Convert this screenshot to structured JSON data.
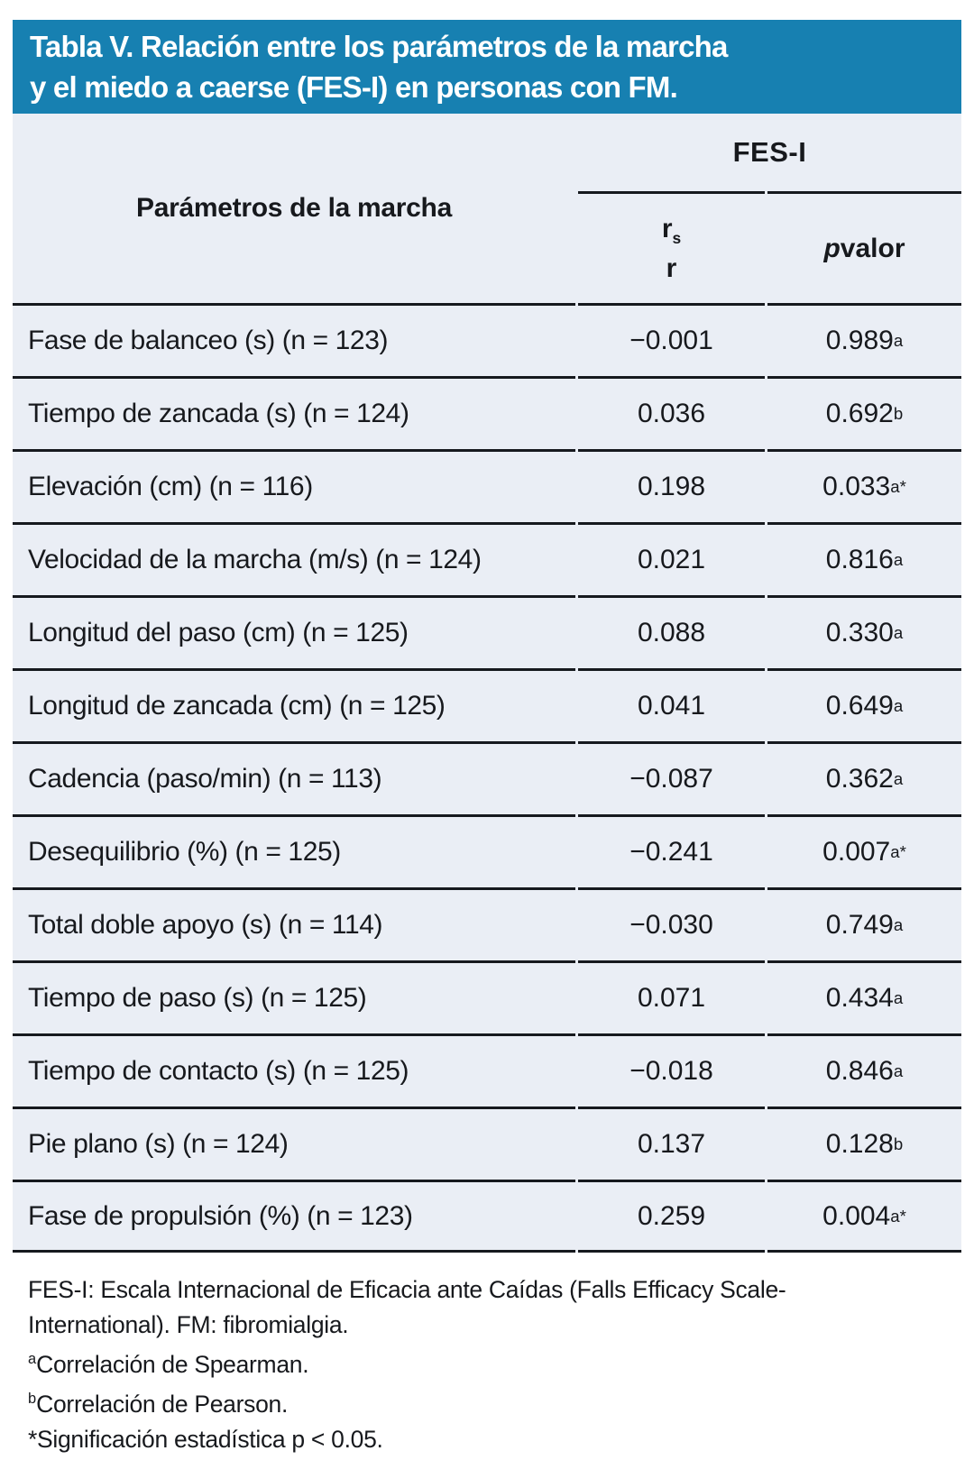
{
  "colors": {
    "title_bar_bg": "#1780B1",
    "table_bg": "#EAEEF5",
    "rule": "#16191E",
    "title_text": "#FFFFFF",
    "body_text": "#17191D"
  },
  "title": {
    "lines": [
      "Tabla V. Relación entre los parámetros de la marcha",
      "y el miedo a caerse (FES-I) en personas con FM."
    ]
  },
  "table": {
    "param_header": "Parámetros de la marcha",
    "group_header": "FES-I",
    "col_r": {
      "line1_base": "r",
      "line1_sub": "s",
      "line2": "r"
    },
    "col_p": {
      "italic": "p",
      "rest": " valor"
    },
    "rows": [
      {
        "label": "Fase de balanceo (s) (n = 123)",
        "rs": "−0.001",
        "p": "0.989",
        "p_sup": "a"
      },
      {
        "label": "Tiempo de zancada (s) (n = 124)",
        "rs": "0.036",
        "p": "0.692",
        "p_sup": "b"
      },
      {
        "label": "Elevación (cm) (n = 116)",
        "rs": "0.198",
        "p": "0.033",
        "p_sup": "a*"
      },
      {
        "label": "Velocidad de la marcha (m/s) (n = 124)",
        "rs": "0.021",
        "p": "0.816",
        "p_sup": "a"
      },
      {
        "label": "Longitud del paso (cm) (n = 125)",
        "rs": "0.088",
        "p": "0.330",
        "p_sup": "a"
      },
      {
        "label": "Longitud de zancada (cm) (n = 125)",
        "rs": "0.041",
        "p": "0.649",
        "p_sup": "a"
      },
      {
        "label": "Cadencia (paso/min) (n = 113)",
        "rs": "−0.087",
        "p": "0.362",
        "p_sup": "a"
      },
      {
        "label": "Desequilibrio (%) (n = 125)",
        "rs": "−0.241",
        "p": "0.007",
        "p_sup": "a*"
      },
      {
        "label": "Total doble apoyo (s) (n = 114)",
        "rs": "−0.030",
        "p": "0.749",
        "p_sup": "a"
      },
      {
        "label": "Tiempo de paso (s) (n = 125)",
        "rs": "0.071",
        "p": "0.434",
        "p_sup": "a"
      },
      {
        "label": "Tiempo de contacto (s) (n = 125)",
        "rs": "−0.018",
        "p": "0.846",
        "p_sup": "a"
      },
      {
        "label": "Pie plano (s) (n = 124)",
        "rs": "0.137",
        "p": "0.128",
        "p_sup": "b"
      },
      {
        "label": "Fase de propulsión (%) (n = 123)",
        "rs": "0.259",
        "p": "0.004",
        "p_sup": "a*"
      }
    ]
  },
  "footnotes": [
    {
      "sup": "",
      "text": "FES-I: Escala Internacional de Eficacia ante Caídas (Falls Efficacy Scale-"
    },
    {
      "sup": "",
      "text": "International). FM: fibromialgia."
    },
    {
      "sup": "a",
      "text": "Correlación de Spearman."
    },
    {
      "sup": "b",
      "text": "Correlación de Pearson."
    },
    {
      "sup": "",
      "text": "*Significación estadística p < 0.05."
    }
  ]
}
